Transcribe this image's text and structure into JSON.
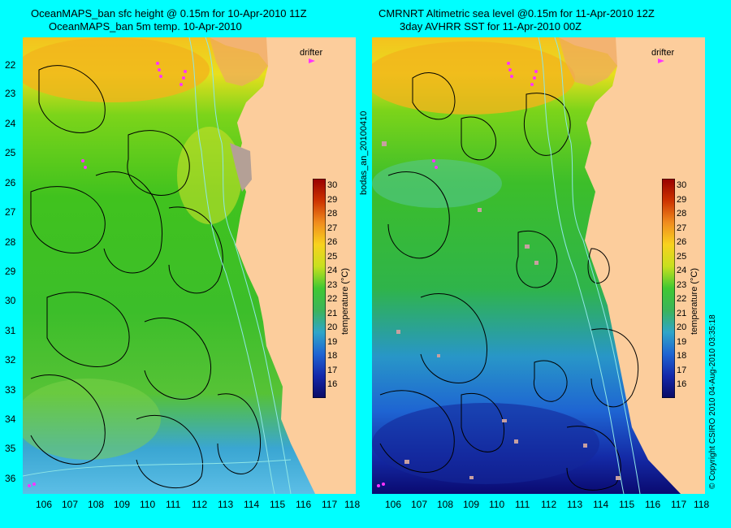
{
  "left": {
    "title_line1": "OceanMAPS_ban sfc height @ 0.15m for 10-Apr-2010 11Z",
    "title_line2": "OceanMAPS_ban 5m temp. 10-Apr-2010",
    "drifter_label": "drifter",
    "colorbar_label": "temperature (°C)"
  },
  "right": {
    "title_line1": "CMRNRT Altimetric sea level  @0.15m  for 11-Apr-2010 12Z",
    "title_line2": "3day AVHRR SST for 11-Apr-2010 00Z",
    "drifter_label": "drifter",
    "colorbar_label": "temperature (°C)"
  },
  "center_label": "bodas_an_20100410",
  "right_edge_label": "© Copyright CSIRO 2010   04-Aug-2010 03:35:18",
  "y_ticks": [
    "22",
    "23",
    "24",
    "25",
    "26",
    "27",
    "28",
    "29",
    "30",
    "31",
    "32",
    "33",
    "34",
    "35",
    "36"
  ],
  "x_ticks": [
    "106",
    "107",
    "108",
    "109",
    "110",
    "111",
    "112",
    "113",
    "114",
    "115",
    "116",
    "117",
    "118"
  ],
  "colorbar_ticks": [
    "30",
    "29",
    "28",
    "27",
    "26",
    "25",
    "24",
    "23",
    "22",
    "21",
    "20",
    "19",
    "18",
    "17",
    "16"
  ],
  "colors": {
    "background": "#00ffff",
    "land": "#fccd9c",
    "drifter": "#ff33ff"
  }
}
